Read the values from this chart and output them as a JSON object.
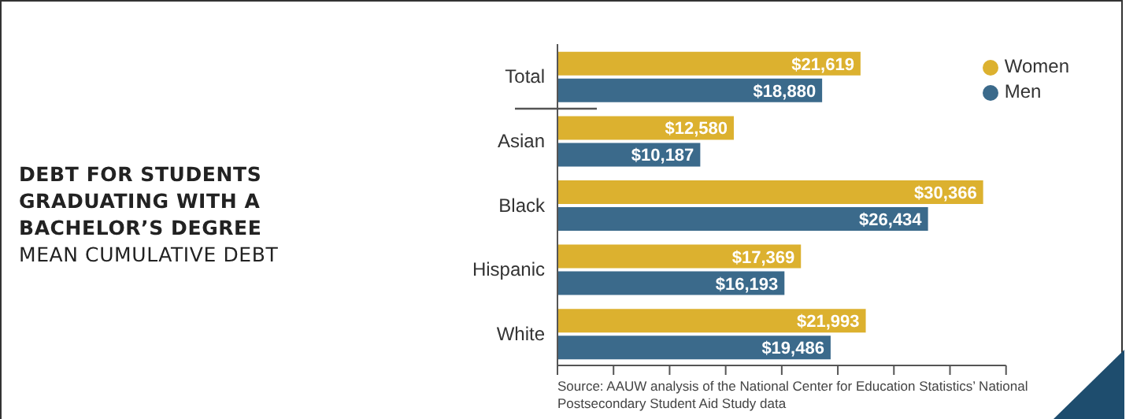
{
  "chart_data": {
    "type": "bar",
    "orientation": "horizontal",
    "title": "DEBT FOR STUDENTS GRADUATING WITH A BACHELOR’S DEGREE",
    "subtitle": "MEAN CUMULATIVE DEBT",
    "annotations": [
      "Source: AAUW analysis of the National Center for Education Statistics’ National Postsecondary Student Aid Study data"
    ],
    "categories": [
      "Total",
      "Asian",
      "Black",
      "Hispanic",
      "White"
    ],
    "series": [
      {
        "name": "Women",
        "color": "#dcb12f",
        "values": [
          21619,
          12580,
          30366,
          17369,
          21993
        ],
        "value_labels": [
          "$21,619",
          "$12,580",
          "$30,366",
          "$17,369",
          "$21,993"
        ]
      },
      {
        "name": "Men",
        "color": "#3b6a8b",
        "values": [
          18880,
          10187,
          26434,
          16193,
          19486
        ],
        "value_labels": [
          "$18,880",
          "$10,187",
          "$26,434",
          "$16,193",
          "$19,486"
        ]
      }
    ],
    "xlim": [
      0,
      32000
    ],
    "xticks": [
      {
        "value": 0,
        "label": null
      },
      {
        "value": 4000,
        "label": null
      },
      {
        "value": 8000,
        "label": null
      },
      {
        "value": 12000,
        "label": null
      },
      {
        "value": 16000,
        "label": null
      },
      {
        "value": 20000,
        "label": null
      },
      {
        "value": 24000,
        "label": null
      },
      {
        "value": 28000,
        "label": null
      },
      {
        "value": 32000,
        "label": null
      }
    ],
    "tick_labels": "y",
    "legend": "top right"
  }
}
